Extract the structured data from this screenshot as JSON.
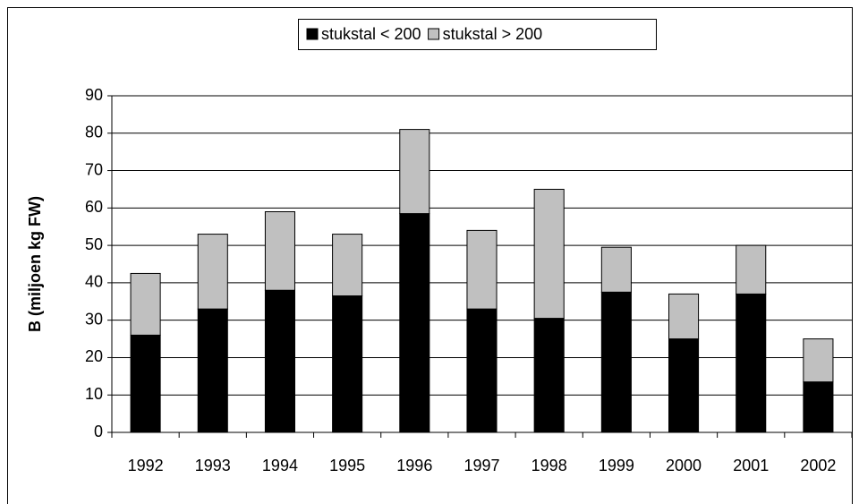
{
  "chart_data": {
    "type": "stacked-bar",
    "y_label": "B (miljoen kg FW)",
    "categories": [
      "1992",
      "1993",
      "1994",
      "1995",
      "1996",
      "1997",
      "1998",
      "1999",
      "2000",
      "2001",
      "2002"
    ],
    "series": [
      {
        "name": "stukstal < 200",
        "color": "#000000",
        "values": [
          26,
          33,
          38,
          36.5,
          58.5,
          33,
          30.5,
          37.5,
          25,
          37,
          13.5
        ]
      },
      {
        "name": "stukstal > 200",
        "color": "#c0c0c0",
        "values": [
          16.5,
          20,
          21,
          16.5,
          22.5,
          21,
          34.5,
          12,
          12,
          13,
          11.5
        ]
      }
    ],
    "ylim": [
      0,
      90
    ],
    "yticks": [
      0,
      10,
      20,
      30,
      40,
      50,
      60,
      70,
      80,
      90
    ],
    "grid": true
  }
}
